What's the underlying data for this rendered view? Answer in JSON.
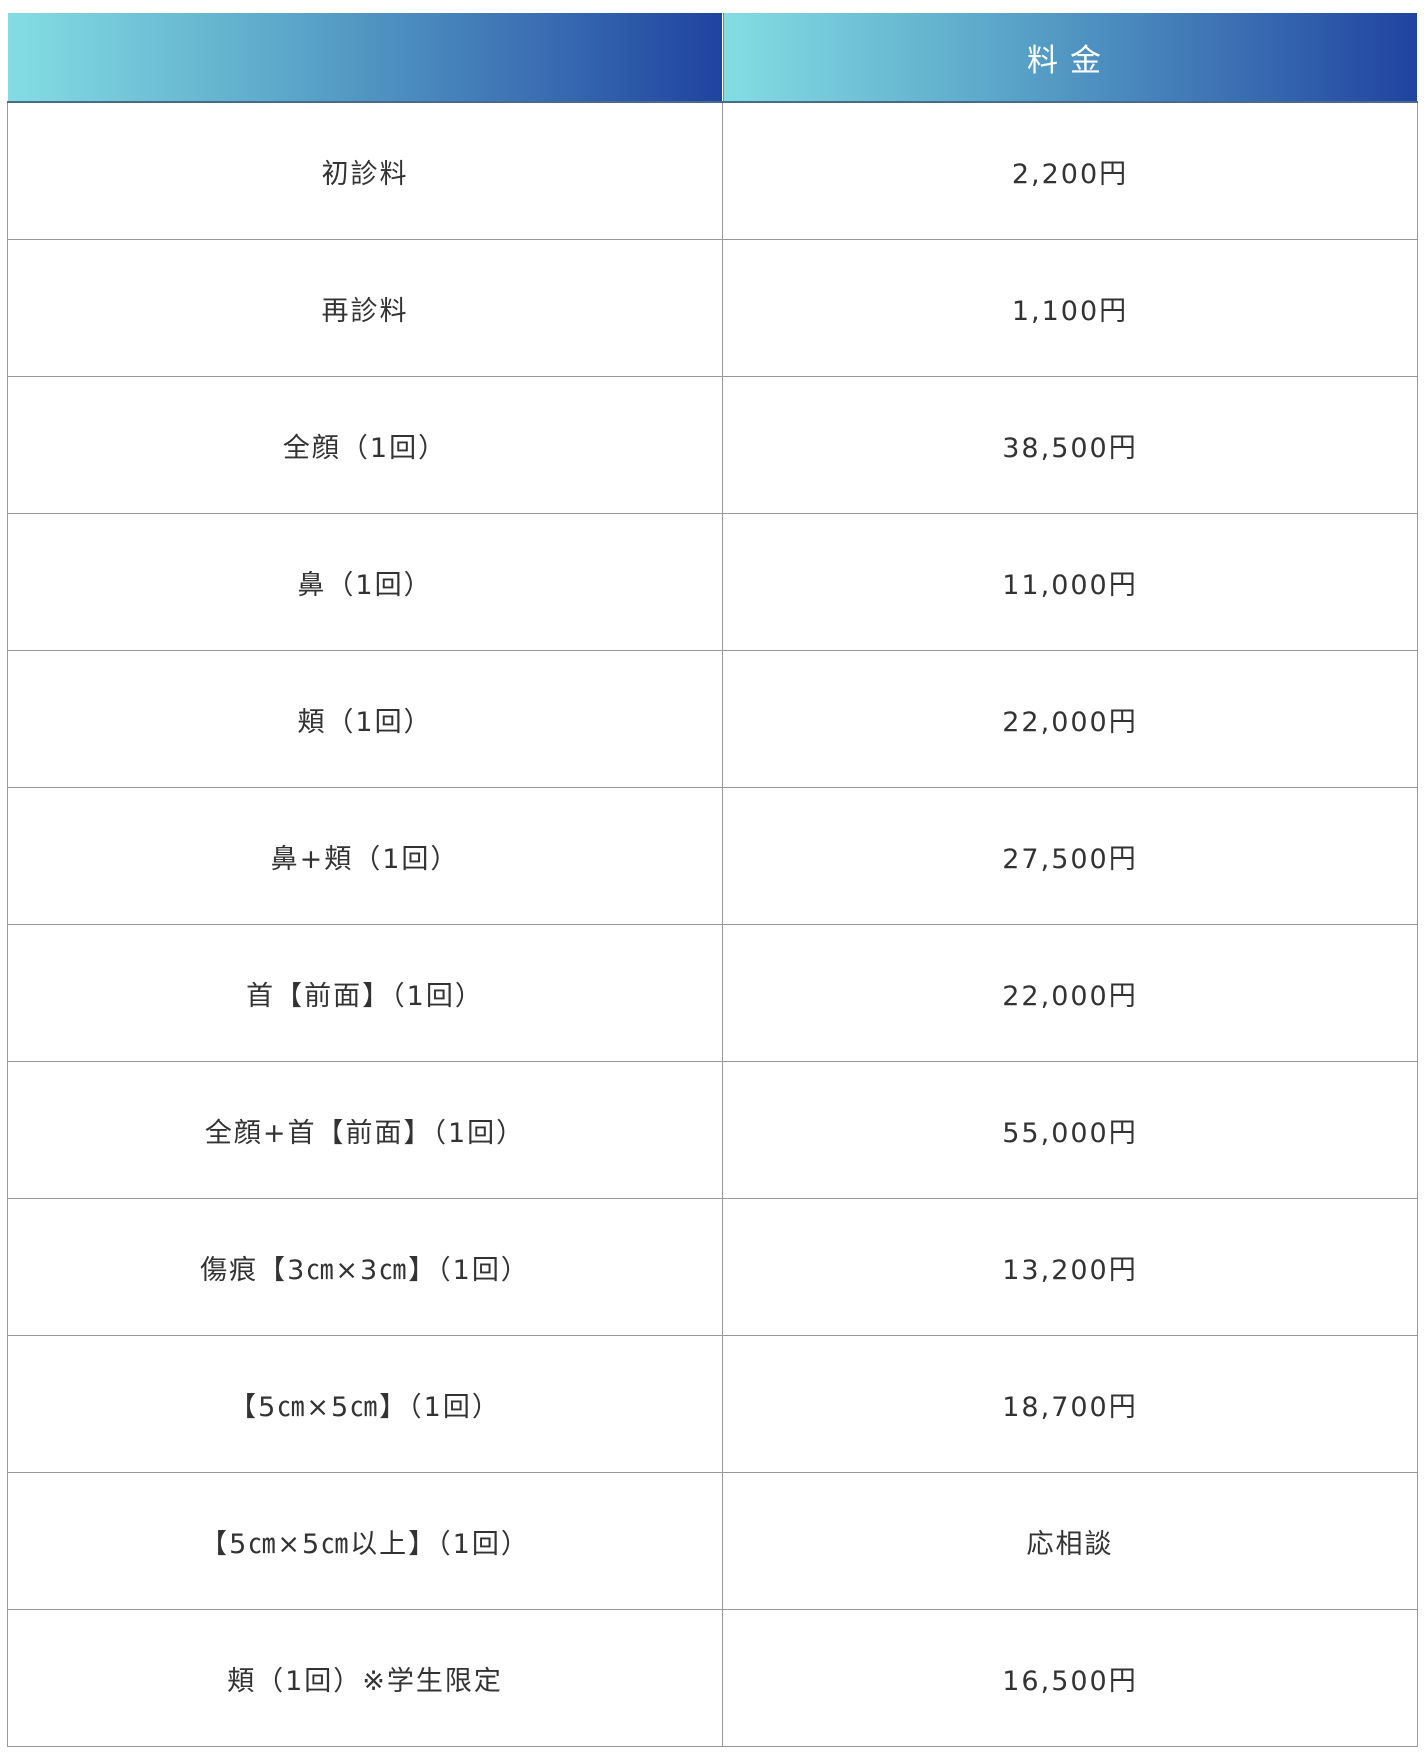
{
  "header": {
    "col1": "",
    "col2": "料金"
  },
  "rows": [
    {
      "item": "初診料",
      "price": "2,200円"
    },
    {
      "item": "再診料",
      "price": "1,100円"
    },
    {
      "item": "全顔（1回）",
      "price": "38,500円"
    },
    {
      "item": "鼻（1回）",
      "price": "11,000円"
    },
    {
      "item": "頬（1回）",
      "price": "22,000円"
    },
    {
      "item": "鼻+頬（1回）",
      "price": "27,500円"
    },
    {
      "item": "首【前面】（1回）",
      "price": "22,000円"
    },
    {
      "item": "全顔+首【前面】（1回）",
      "price": "55,000円"
    },
    {
      "item": "傷痕【3㎝×3㎝】（1回）",
      "price": "13,200円"
    },
    {
      "item": "【5㎝×5㎝】（1回）",
      "price": "18,700円"
    },
    {
      "item": "【5㎝×5㎝以上】（1回）",
      "price": "応相談"
    },
    {
      "item": "頬（1回）※学生限定",
      "price": "16,500円"
    }
  ],
  "colors": {
    "header_gradient_start": "#84dde3",
    "header_gradient_end": "#1f43a0",
    "text": "#333333"
  }
}
